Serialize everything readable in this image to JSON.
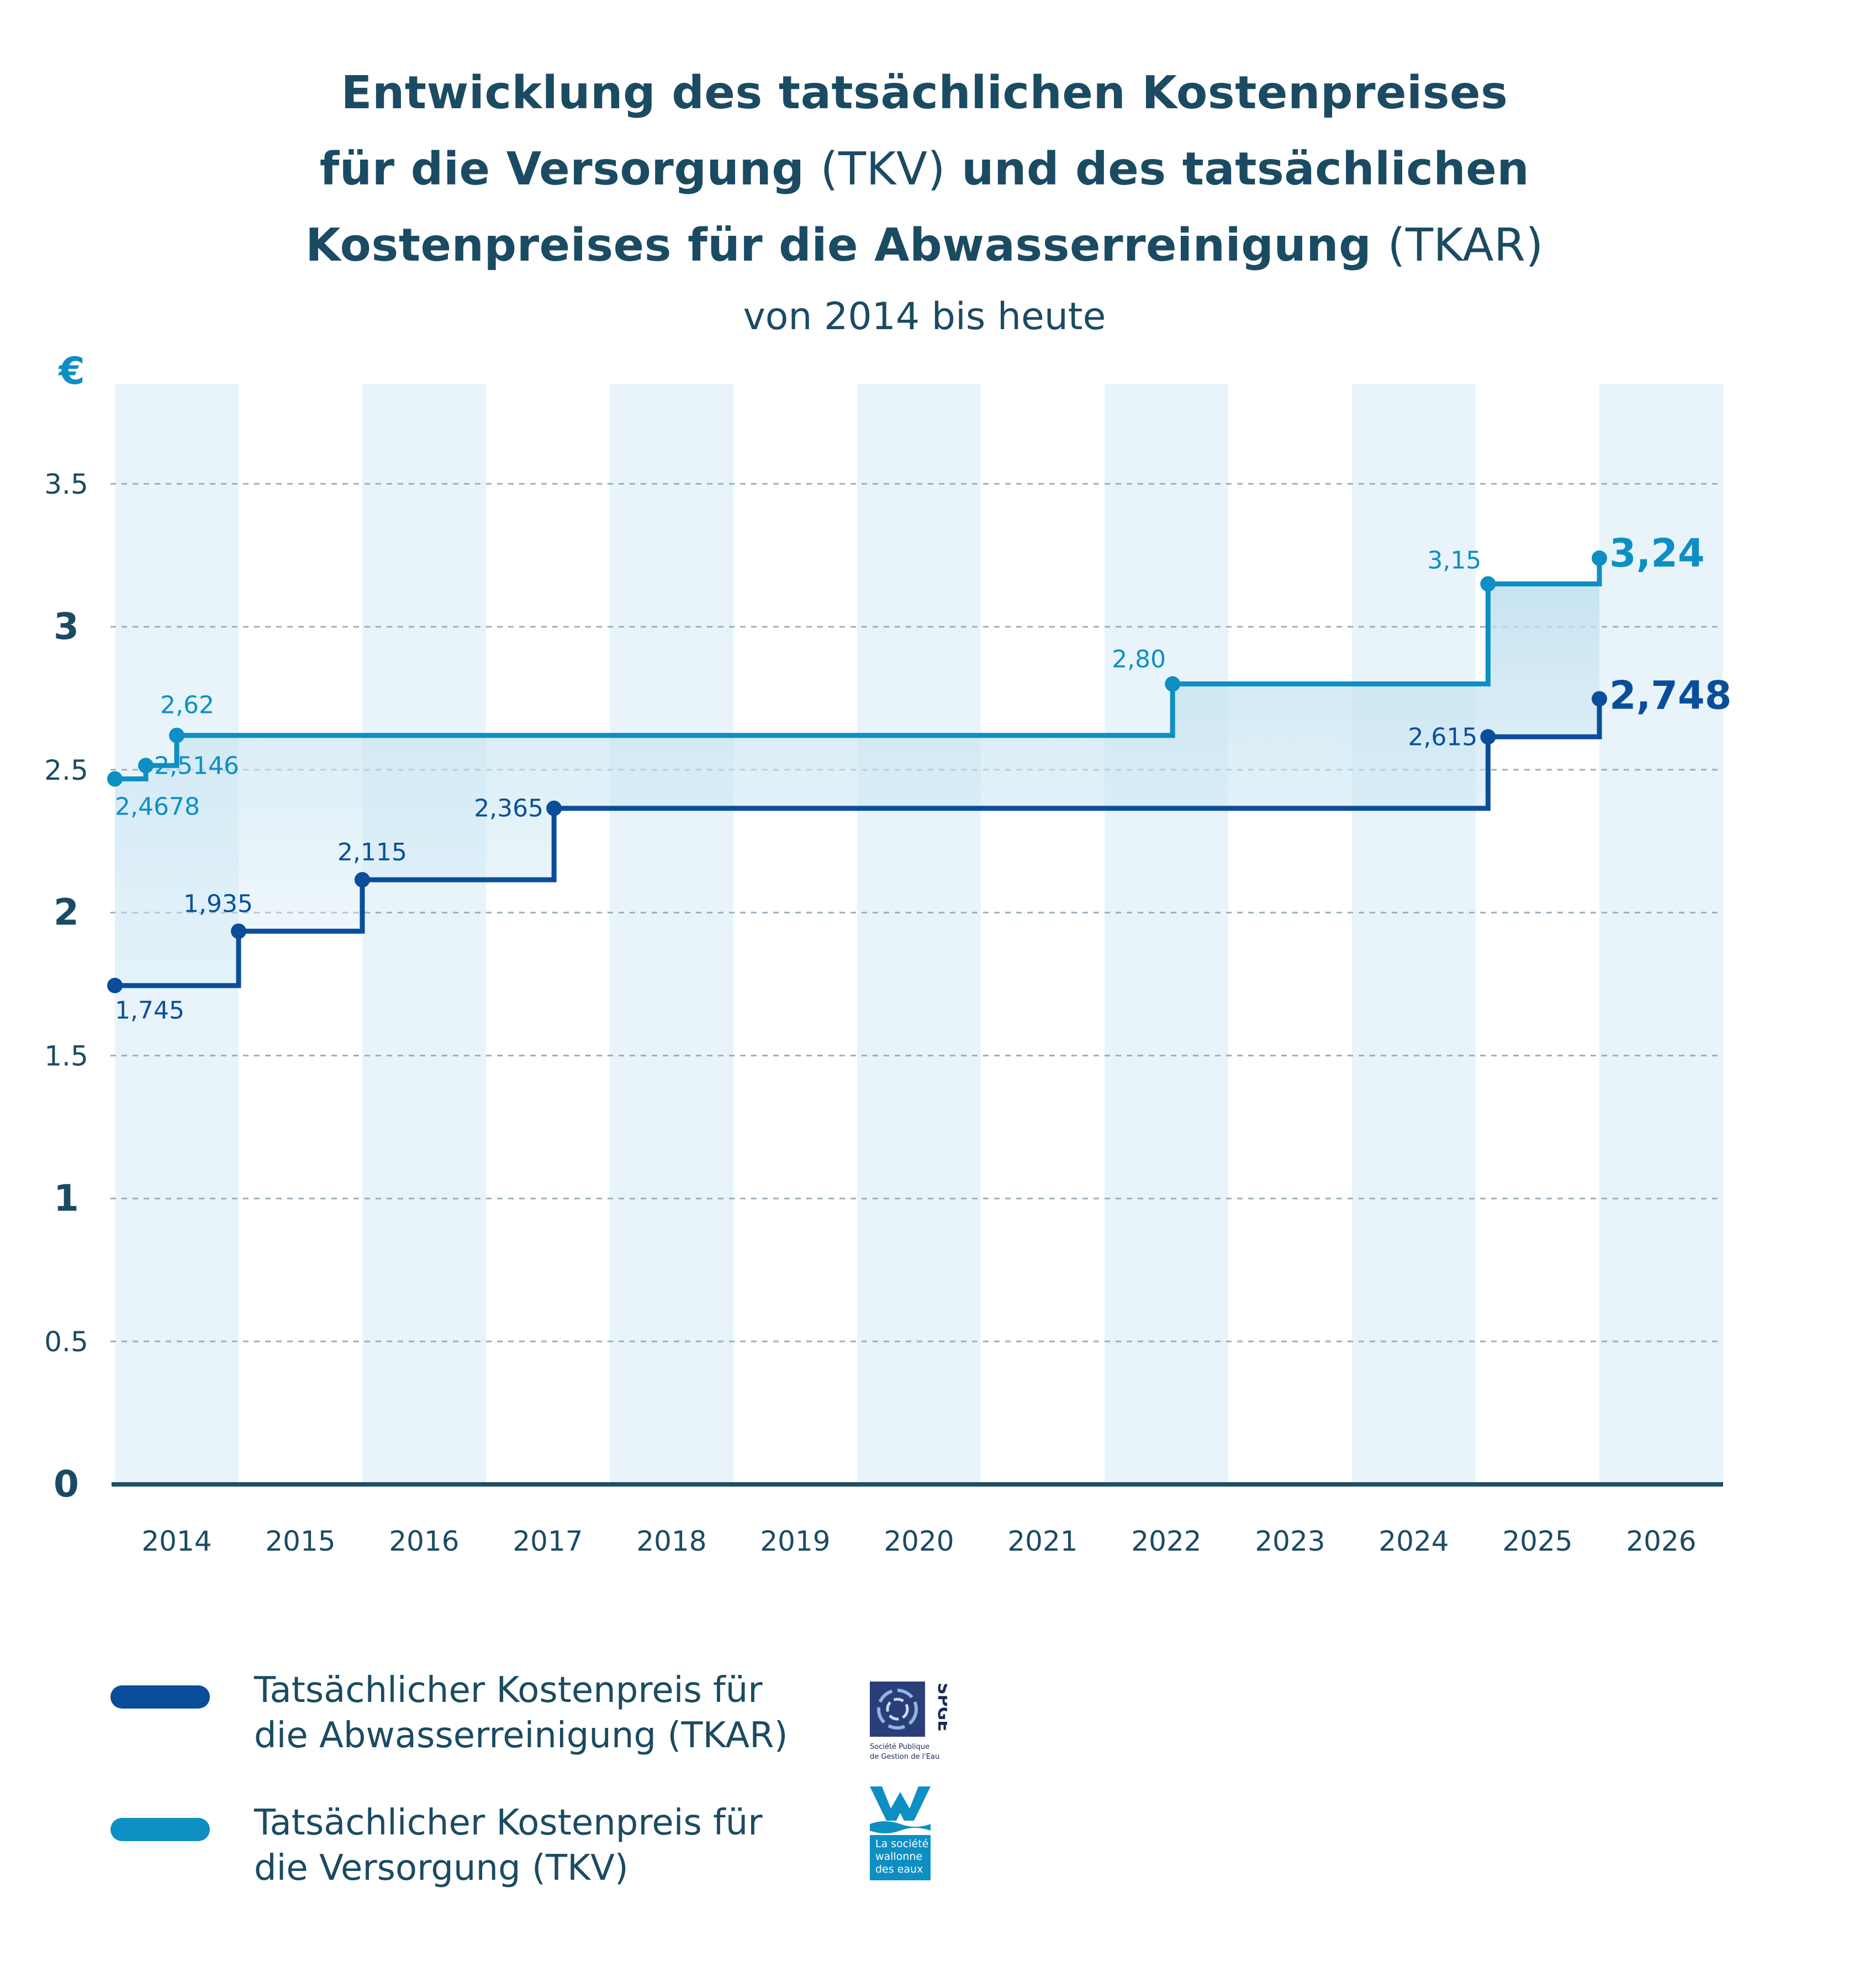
{
  "title": {
    "line1": "Entwicklung des tatsächlichen Kostenpreises",
    "line2_bold_a": "für die Versorgung",
    "line2_light": "(TKV)",
    "line2_bold_b": "und des tatsächlichen",
    "line3_bold": "Kostenpreises für die Abwasserreinigung",
    "line3_light": "(TKAR)",
    "subtitle": "von 2014 bis heute"
  },
  "colors": {
    "tkar": "#0a4e9b",
    "tkv": "#0d8fc4",
    "band": "#e8f4fa",
    "text": "#1b4b62",
    "axis": "#1f4f66",
    "grid": "#9bb0bd"
  },
  "chart_data": {
    "type": "line",
    "step": true,
    "title": "Entwicklung des tatsächlichen Kostenpreises für die Versorgung (TKV) und des tatsächlichen Kostenpreises für die Abwasserreinigung (TKAR)",
    "subtitle": "von 2014 bis heute",
    "ylabel": "€",
    "xlabel": "",
    "ylim": [
      0,
      3.85
    ],
    "grid": true,
    "categories": [
      "2014",
      "2015",
      "2016",
      "2017",
      "2018",
      "2019",
      "2020",
      "2021",
      "2022",
      "2023",
      "2024",
      "2025",
      "2026"
    ],
    "y_ticks": [
      {
        "value": 0,
        "label": "0",
        "major": true
      },
      {
        "value": 0.5,
        "label": "0.5",
        "major": false
      },
      {
        "value": 1,
        "label": "1",
        "major": true
      },
      {
        "value": 1.5,
        "label": "1.5",
        "major": false
      },
      {
        "value": 2,
        "label": "2",
        "major": true
      },
      {
        "value": 2.5,
        "label": "2.5",
        "major": false
      },
      {
        "value": 3,
        "label": "3",
        "major": true
      },
      {
        "value": 3.5,
        "label": "3.5",
        "major": false
      }
    ],
    "series": [
      {
        "name": "Tatsächlicher Kostenpreis für die Abwasserreinigung (TKAR)",
        "key": "tkar",
        "x": [
          2014.0,
          2015.0,
          2016.0,
          2017.55,
          2025.1,
          2026.0
        ],
        "values": [
          1.745,
          1.935,
          2.115,
          2.365,
          2.615,
          2.748
        ],
        "labels": [
          "1,745",
          "1,935",
          "2,115",
          "2,365",
          "2,615",
          "2,748"
        ],
        "x_end": 2026.0
      },
      {
        "name": "Tatsächlicher Kostenpreis für die Versorgung (TKV)",
        "key": "tkv",
        "x": [
          2014.0,
          2014.25,
          2014.5,
          2022.55,
          2025.1,
          2026.0
        ],
        "values": [
          2.4678,
          2.5146,
          2.62,
          2.8,
          3.15,
          3.24
        ],
        "labels": [
          "2,4678",
          "2,5146",
          "2,62",
          "2,80",
          "3,15",
          "3,24"
        ],
        "x_end": 2026.0
      }
    ]
  },
  "legend": [
    {
      "line1": "Tatsächlicher Kostenpreis für",
      "line2": "die Abwasserreinigung (TKAR)"
    },
    {
      "line1": "Tatsächlicher Kostenpreis für",
      "line2": "die Versorgung (TKV)"
    }
  ],
  "logos": {
    "spge_name": "SPGE",
    "spge_caption_1": "Société Publique",
    "spge_caption_2": "de Gestion de l'Eau",
    "swde_line1": "La société",
    "swde_line2": "wallonne",
    "swde_line3": "des eaux"
  }
}
